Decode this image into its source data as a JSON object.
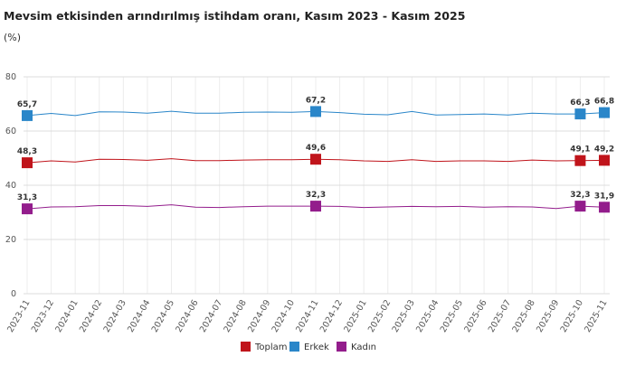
{
  "chart_data": {
    "type": "line",
    "title": "Mevsim etkisinden arındırılmış istihdam oranı, Kasım 2023 - Kasım 2025",
    "subtitle": "(%)",
    "x": [
      "2023-11",
      "2023-12",
      "2024-01",
      "2024-02",
      "2024-03",
      "2024-04",
      "2024-05",
      "2024-06",
      "2024-07",
      "2024-08",
      "2024-09",
      "2024-10",
      "2024-11",
      "2024-12",
      "2025-01",
      "2025-02",
      "2025-03",
      "2025-04",
      "2025-05",
      "2025-06",
      "2025-07",
      "2025-08",
      "2025-09",
      "2025-10",
      "2025-11"
    ],
    "series": [
      {
        "name": "Toplam",
        "color": "#c0141b",
        "values": [
          48.3,
          49.0,
          48.6,
          49.6,
          49.5,
          49.2,
          49.8,
          49.1,
          49.1,
          49.3,
          49.4,
          49.4,
          49.6,
          49.4,
          49.0,
          48.8,
          49.4,
          48.8,
          49.0,
          49.0,
          48.8,
          49.3,
          49.0,
          49.1,
          49.2
        ],
        "value_labels": [
          "48,3",
          null,
          null,
          null,
          null,
          null,
          null,
          null,
          null,
          null,
          null,
          null,
          "49,6",
          null,
          null,
          null,
          null,
          null,
          null,
          null,
          null,
          null,
          null,
          "49,1",
          "49,2"
        ]
      },
      {
        "name": "Erkek",
        "color": "#2a86c9",
        "values": [
          65.7,
          66.5,
          65.7,
          67.1,
          67.0,
          66.6,
          67.3,
          66.6,
          66.6,
          66.9,
          67.0,
          66.9,
          67.2,
          66.8,
          66.2,
          66.0,
          67.2,
          65.9,
          66.1,
          66.3,
          65.9,
          66.6,
          66.3,
          66.3,
          66.8
        ],
        "value_labels": [
          "65,7",
          null,
          null,
          null,
          null,
          null,
          null,
          null,
          null,
          null,
          null,
          null,
          "67,2",
          null,
          null,
          null,
          null,
          null,
          null,
          null,
          null,
          null,
          null,
          "66,3",
          "66,8"
        ]
      },
      {
        "name": "Kadın",
        "color": "#931d8c",
        "values": [
          31.3,
          32.0,
          32.1,
          32.5,
          32.5,
          32.2,
          32.8,
          31.9,
          31.8,
          32.1,
          32.3,
          32.3,
          32.3,
          32.2,
          31.8,
          32.0,
          32.2,
          32.1,
          32.2,
          31.9,
          32.1,
          32.0,
          31.4,
          32.3,
          31.9
        ],
        "value_labels": [
          "31,3",
          null,
          null,
          null,
          null,
          null,
          null,
          null,
          null,
          null,
          null,
          null,
          "32,3",
          null,
          null,
          null,
          null,
          null,
          null,
          null,
          null,
          null,
          null,
          "32,3",
          "31,9"
        ]
      }
    ],
    "ylim": [
      0,
      80
    ],
    "yticks": [
      0,
      20,
      40,
      60,
      80
    ],
    "grid": true
  }
}
